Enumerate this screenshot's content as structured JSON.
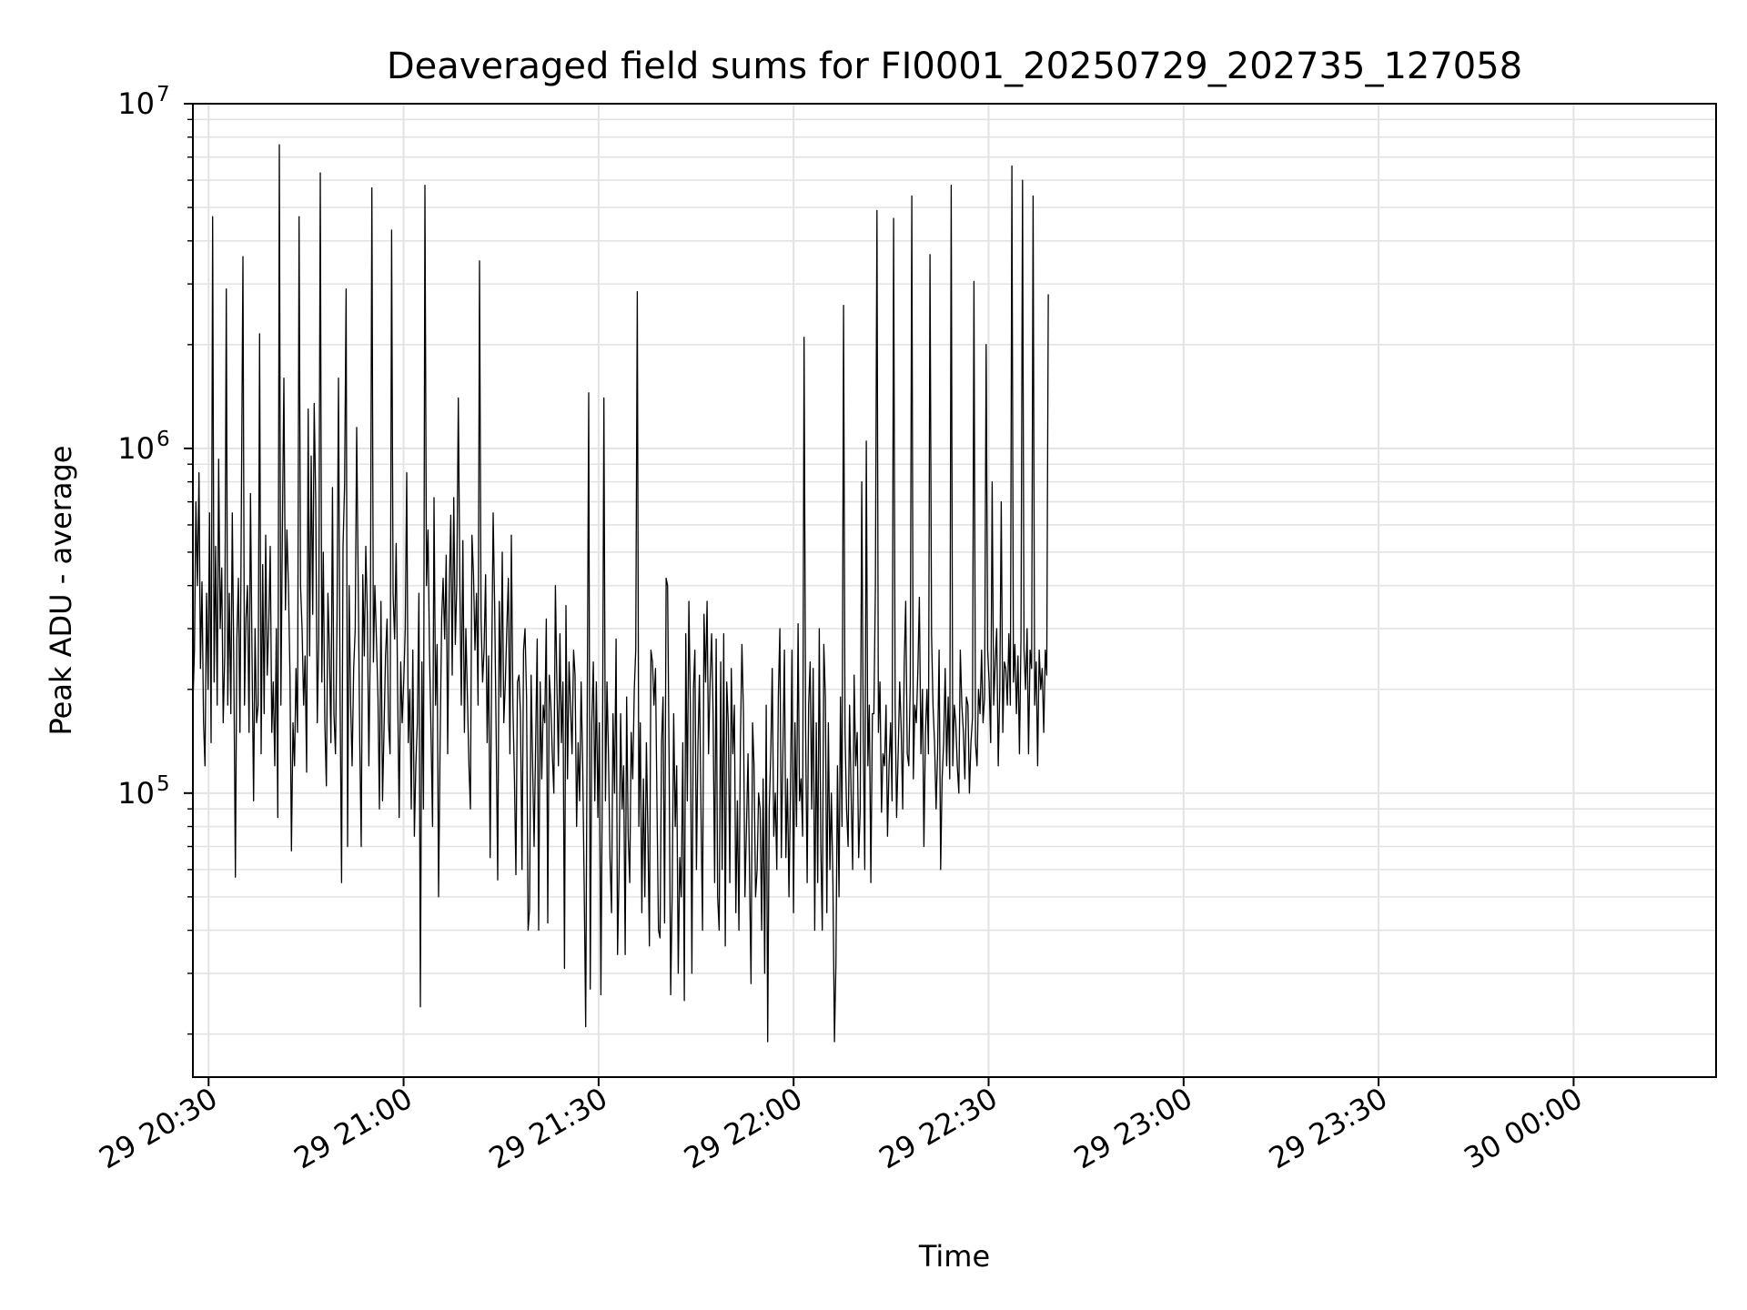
{
  "chart_data": {
    "type": "line",
    "title": "Deaveraged field sums for FI0001_20250729_202735_127058",
    "xlabel": "Time",
    "ylabel": "Peak ADU - average",
    "yscale": "log",
    "ylim": [
      15000,
      10000000
    ],
    "xlim": [
      "2025-07-29 20:27:35",
      "2025-07-30 00:21:55"
    ],
    "grid": true,
    "line_color": "#000000",
    "x_ticks": [
      {
        "t": "2025-07-29 20:30",
        "label": "29 20:30"
      },
      {
        "t": "2025-07-29 21:00",
        "label": "29 21:00"
      },
      {
        "t": "2025-07-29 21:30",
        "label": "29 21:30"
      },
      {
        "t": "2025-07-29 22:00",
        "label": "29 22:00"
      },
      {
        "t": "2025-07-29 22:30",
        "label": "29 22:30"
      },
      {
        "t": "2025-07-29 23:00",
        "label": "29 23:00"
      },
      {
        "t": "2025-07-29 23:30",
        "label": "29 23:30"
      },
      {
        "t": "2025-07-30 00:00",
        "label": "30 00:00"
      }
    ],
    "y_ticks": [
      {
        "value": 100000,
        "label": "10",
        "exp": "5"
      },
      {
        "value": 1000000,
        "label": "10",
        "exp": "6"
      },
      {
        "value": 10000000,
        "label": "10",
        "exp": "7"
      }
    ],
    "series": [
      {
        "x_start": "2025-07-29 20:27:35",
        "x_step_seconds": 14,
        "values": [
          180000,
          260000,
          700000,
          400000,
          850000,
          230000,
          410000,
          160000,
          120000,
          380000,
          200000,
          650000,
          140000,
          4700000,
          210000,
          520000,
          180000,
          930000,
          300000,
          450000,
          160000,
          250000,
          2900000,
          180000,
          380000,
          170000,
          650000,
          230000,
          57000,
          280000,
          420000,
          150000,
          700000,
          3600000,
          180000,
          320000,
          400000,
          150000,
          740000,
          250000,
          95000,
          300000,
          160000,
          180000,
          2150000,
          130000,
          460000,
          170000,
          560000,
          220000,
          300000,
          520000,
          150000,
          210000,
          120000,
          300000,
          85000,
          7600000,
          180000,
          560000,
          1600000,
          340000,
          580000,
          400000,
          220000,
          68000,
          160000,
          120000,
          230000,
          150000,
          4700000,
          400000,
          300000,
          180000,
          250000,
          115000,
          1300000,
          250000,
          950000,
          330000,
          1350000,
          700000,
          160000,
          280000,
          6300000,
          210000,
          500000,
          160000,
          105000,
          380000,
          260000,
          140000,
          770000,
          170000,
          130000,
          320000,
          1600000,
          200000,
          55000,
          520000,
          780000,
          2900000,
          70000,
          400000,
          180000,
          120000,
          230000,
          300000,
          1150000,
          400000,
          140000,
          70000,
          430000,
          250000,
          520000,
          330000,
          120000,
          280000,
          5700000,
          240000,
          400000,
          280000,
          190000,
          90000,
          360000,
          95000,
          150000,
          250000,
          320000,
          160000,
          130000,
          4300000,
          380000,
          280000,
          530000,
          200000,
          85000,
          240000,
          160000,
          210000,
          300000,
          850000,
          140000,
          200000,
          90000,
          260000,
          75000,
          120000,
          160000,
          380000,
          24000,
          240000,
          90000,
          5800000,
          400000,
          580000,
          260000,
          150000,
          80000,
          720000,
          180000,
          270000,
          50000,
          140000,
          320000,
          420000,
          280000,
          490000,
          130000,
          380000,
          640000,
          220000,
          720000,
          270000,
          400000,
          1400000,
          400000,
          180000,
          540000,
          150000,
          300000,
          190000,
          120000,
          90000,
          560000,
          430000,
          260000,
          380000,
          180000,
          3500000,
          320000,
          210000,
          260000,
          430000,
          140000,
          250000,
          65000,
          240000,
          650000,
          340000,
          140000,
          56000,
          360000,
          190000,
          500000,
          160000,
          210000,
          300000,
          420000,
          130000,
          560000,
          180000,
          110000,
          58000,
          210000,
          220000,
          170000,
          60000,
          260000,
          300000,
          190000,
          40000,
          46000,
          220000,
          120000,
          70000,
          140000,
          280000,
          40000,
          210000,
          110000,
          180000,
          160000,
          320000,
          42000,
          220000,
          180000,
          130000,
          100000,
          400000,
          210000,
          120000,
          290000,
          140000,
          210000,
          31000,
          350000,
          110000,
          240000,
          180000,
          130000,
          260000,
          220000,
          80000,
          140000,
          95000,
          210000,
          120000,
          55000,
          21000,
          180000,
          1450000,
          27000,
          160000,
          240000,
          95000,
          210000,
          85000,
          160000,
          26000,
          120000,
          1400000,
          95000,
          210000,
          130000,
          65000,
          45000,
          170000,
          100000,
          280000,
          34000,
          60000,
          170000,
          90000,
          120000,
          34000,
          190000,
          75000,
          55000,
          150000,
          110000,
          200000,
          260000,
          2850000,
          80000,
          160000,
          45000,
          110000,
          50000,
          140000,
          75000,
          36000,
          260000,
          240000,
          180000,
          230000,
          90000,
          40000,
          38000,
          140000,
          190000,
          42000,
          420000,
          400000,
          120000,
          26000,
          50000,
          170000,
          80000,
          120000,
          30000,
          65000,
          50000,
          140000,
          25000,
          290000,
          95000,
          360000,
          180000,
          30000,
          200000,
          260000,
          60000,
          140000,
          220000,
          90000,
          40000,
          330000,
          210000,
          360000,
          130000,
          210000,
          290000,
          170000,
          55000,
          280000,
          50000,
          40000,
          240000,
          60000,
          290000,
          36000,
          210000,
          160000,
          55000,
          230000,
          130000,
          180000,
          45000,
          95000,
          40000,
          140000,
          270000,
          170000,
          50000,
          80000,
          130000,
          60000,
          28000,
          160000,
          120000,
          50000,
          60000,
          100000,
          90000,
          40000,
          110000,
          30000,
          180000,
          19000,
          90000,
          130000,
          230000,
          75000,
          100000,
          60000,
          190000,
          300000,
          65000,
          130000,
          260000,
          65000,
          110000,
          50000,
          100000,
          260000,
          45000,
          160000,
          80000,
          310000,
          95000,
          110000,
          75000,
          2100000,
          150000,
          55000,
          180000,
          240000,
          90000,
          230000,
          40000,
          160000,
          55000,
          300000,
          70000,
          40000,
          270000,
          190000,
          45000,
          160000,
          60000,
          100000,
          55000,
          19000,
          32000,
          120000,
          50000,
          190000,
          80000,
          2600000,
          150000,
          90000,
          70000,
          180000,
          100000,
          60000,
          220000,
          120000,
          150000,
          65000,
          90000,
          800000,
          140000,
          60000,
          1050000,
          120000,
          180000,
          55000,
          170000,
          170000,
          400000,
          4900000,
          150000,
          210000,
          88000,
          130000,
          120000,
          180000,
          75000,
          120000,
          160000,
          95000,
          4650000,
          180000,
          85000,
          130000,
          210000,
          155000,
          90000,
          240000,
          360000,
          130000,
          120000,
          210000,
          5400000,
          110000,
          180000,
          160000,
          230000,
          370000,
          130000,
          200000,
          70000,
          150000,
          200000,
          130000,
          3650000,
          290000,
          180000,
          140000,
          90000,
          130000,
          260000,
          60000,
          110000,
          140000,
          230000,
          120000,
          190000,
          110000,
          5800000,
          120000,
          180000,
          160000,
          120000,
          100000,
          260000,
          180000,
          150000,
          110000,
          190000,
          180000,
          100000,
          140000,
          165000,
          3050000,
          140000,
          120000,
          200000,
          170000,
          260000,
          160000,
          190000,
          2000000,
          260000,
          210000,
          140000,
          800000,
          180000,
          240000,
          300000,
          120000,
          200000,
          700000,
          150000,
          240000,
          230000,
          180000,
          290000,
          180000,
          6600000,
          210000,
          270000,
          170000,
          250000,
          130000,
          280000,
          6000000,
          260000,
          200000,
          300000,
          130000,
          260000,
          230000,
          5400000,
          180000,
          240000,
          120000,
          260000,
          200000,
          230000,
          150000,
          260000,
          220000,
          2800000
        ]
      }
    ]
  }
}
